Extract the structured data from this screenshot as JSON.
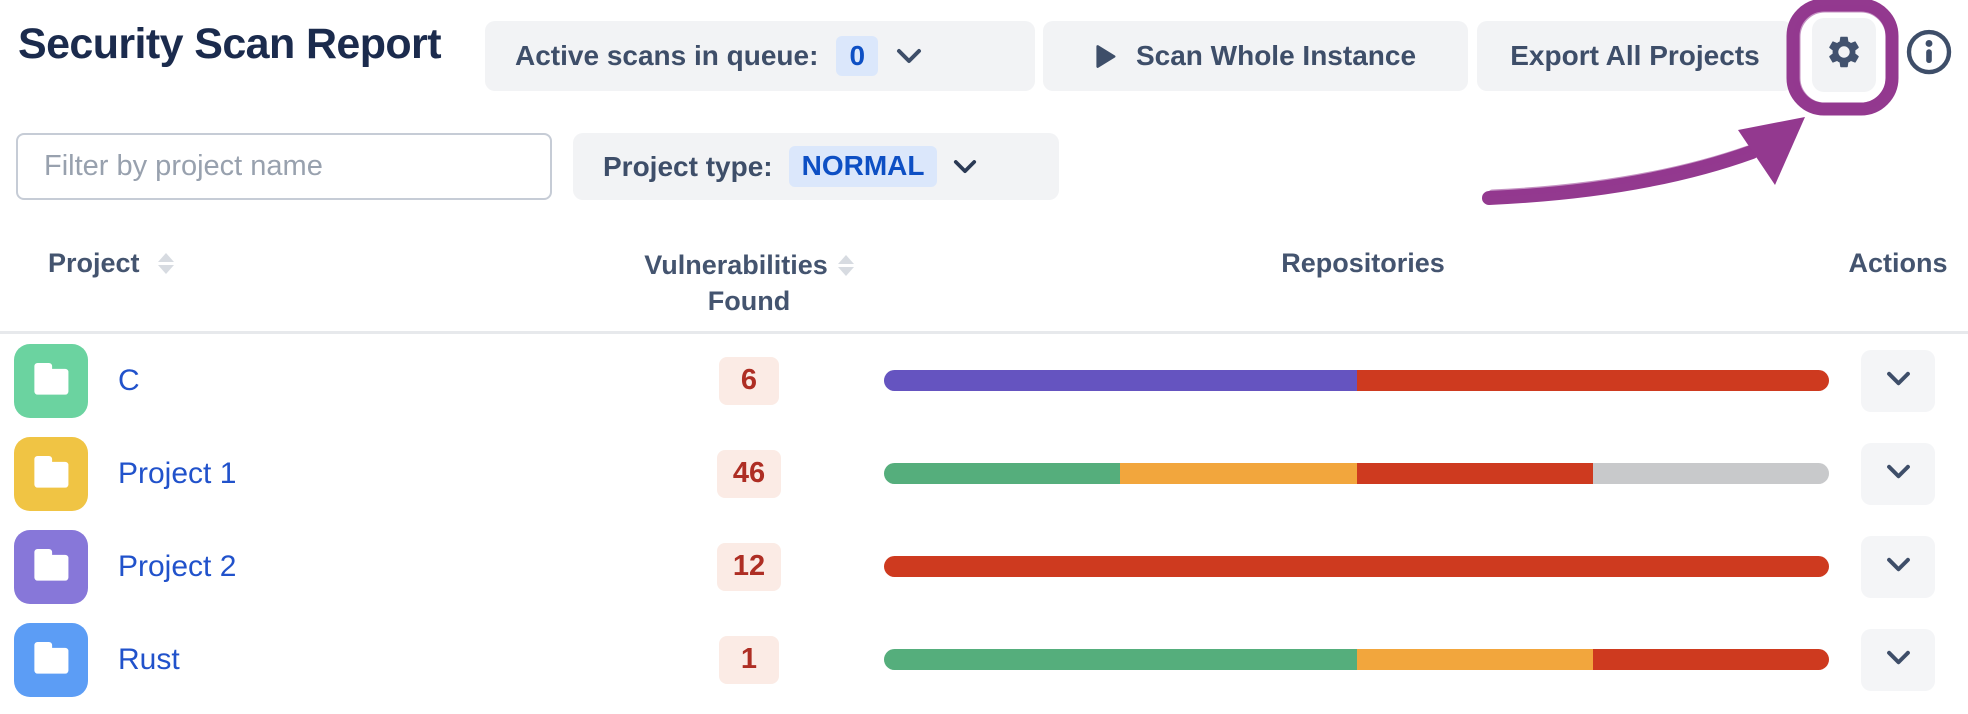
{
  "header": {
    "title": "Security Scan Report",
    "queue_button": {
      "label": "Active scans in queue:",
      "count": "0"
    },
    "scan_button": {
      "label": "Scan Whole Instance"
    },
    "export_button": {
      "label": "Export All Projects"
    }
  },
  "filters": {
    "search_placeholder": "Filter by project name",
    "project_type_label": "Project type:",
    "project_type_value": "NORMAL"
  },
  "table": {
    "columns": {
      "project": "Project",
      "vulnerabilities_line1": "Vulnerabilities",
      "vulnerabilities_line2": "Found",
      "repositories": "Repositories",
      "actions": "Actions"
    },
    "rows": [
      {
        "name": "C",
        "avatar_color": "#6bd3a0",
        "vulnerabilities": "6",
        "repo_segments": [
          {
            "color": "#6554c0",
            "percent": 50
          },
          {
            "color": "#ce3a1f",
            "percent": 50
          }
        ]
      },
      {
        "name": "Project 1",
        "avatar_color": "#f0c444",
        "vulnerabilities": "46",
        "repo_segments": [
          {
            "color": "#55ae7c",
            "percent": 25
          },
          {
            "color": "#f2a63d",
            "percent": 25
          },
          {
            "color": "#ce3a1f",
            "percent": 25
          },
          {
            "color": "#c8c9cb",
            "percent": 25
          }
        ]
      },
      {
        "name": "Project 2",
        "avatar_color": "#8777d9",
        "vulnerabilities": "12",
        "repo_segments": [
          {
            "color": "#ce3a1f",
            "percent": 100
          }
        ]
      },
      {
        "name": "Rust",
        "avatar_color": "#5c9df5",
        "vulnerabilities": "1",
        "repo_segments": [
          {
            "color": "#55ae7c",
            "percent": 50
          },
          {
            "color": "#f2a63d",
            "percent": 25
          },
          {
            "color": "#ce3a1f",
            "percent": 25
          }
        ]
      }
    ]
  },
  "annotation_color": "#93398f",
  "colors": {
    "link": "#2152cb",
    "title_text": "#1b2b4d",
    "button_text": "#3e4e69",
    "button_bg": "#f2f3f5",
    "count_badge_bg": "#dbe7fb",
    "count_badge_text": "#0d4fc4",
    "vuln_badge_bg": "#fbebe5",
    "vuln_badge_text": "#ae2e24"
  }
}
